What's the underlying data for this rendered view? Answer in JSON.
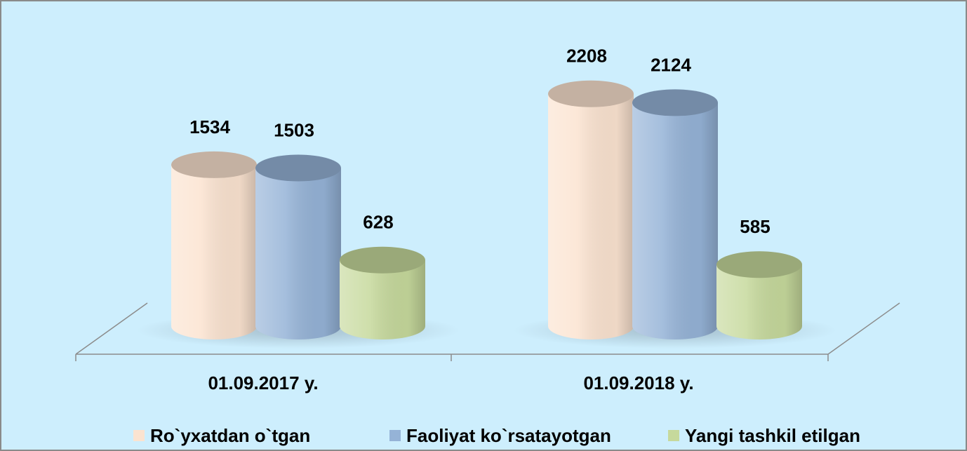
{
  "chart_data": {
    "type": "bar3d",
    "categories": [
      "01.09.2017 y.",
      "01.09.2018 y."
    ],
    "series": [
      {
        "name": "Ro`yxatdan o`tgan",
        "color": "#fbe3d0",
        "values": [
          1534,
          2208
        ]
      },
      {
        "name": "Faoliyat ko`rsatayotgan",
        "color": "#95b3d7",
        "values": [
          1503,
          2124
        ]
      },
      {
        "name": "Yangi tashkil etilgan",
        "color": "#c6d99c",
        "values": [
          628,
          585
        ]
      }
    ],
    "legend": "bottom"
  }
}
